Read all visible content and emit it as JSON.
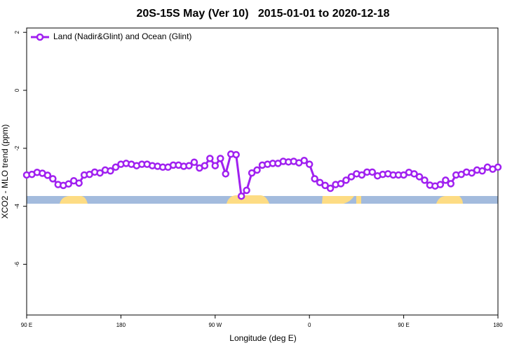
{
  "chart_data": {
    "type": "line",
    "title": "20S-15S May (Ver 10)   2015-01-01 to 2020-12-18",
    "xlabel": "Longitude (deg E)",
    "ylabel": "XCO2 - MLO trend (ppm)",
    "xlim": [
      90,
      540
    ],
    "xticks": [
      {
        "value": 90,
        "label": "90 E"
      },
      180,
      {
        "value": 270,
        "label": "90 W"
      },
      {
        "value": 360,
        "label": "0"
      },
      {
        "value": 450,
        "label": "90 E"
      },
      {
        "value": 540,
        "label": "180"
      }
    ],
    "ylim": [
      -7.75,
      2.15
    ],
    "yticks": [
      -6,
      -4,
      -2,
      0,
      2
    ],
    "legend": "top-left",
    "series": [
      {
        "name": "Land (Nadir&Glint) and Ocean (Glint)",
        "color": "#a020f0",
        "x": [
          90,
          95,
          100,
          105,
          110,
          115,
          120,
          125,
          130,
          135,
          140,
          145,
          150,
          155,
          160,
          165,
          170,
          175,
          180,
          185,
          190,
          195,
          200,
          205,
          210,
          215,
          220,
          225,
          230,
          235,
          240,
          245,
          250,
          255,
          260,
          265,
          270,
          275,
          280,
          285,
          290,
          295,
          300,
          305,
          310,
          315,
          320,
          325,
          330,
          335,
          340,
          345,
          350,
          355,
          360,
          365,
          370,
          375,
          380,
          385,
          390,
          395,
          400,
          405,
          410,
          415,
          420,
          425,
          430,
          435,
          440,
          445,
          450,
          455,
          460,
          465,
          470,
          475,
          480,
          485,
          490,
          495,
          500,
          505,
          510,
          515,
          520,
          525,
          530,
          535,
          540
        ],
        "values": [
          -2.92,
          -2.9,
          -2.83,
          -2.86,
          -2.93,
          -3.05,
          -3.25,
          -3.28,
          -3.23,
          -3.12,
          -3.2,
          -2.92,
          -2.9,
          -2.82,
          -2.85,
          -2.75,
          -2.78,
          -2.65,
          -2.55,
          -2.52,
          -2.55,
          -2.6,
          -2.55,
          -2.55,
          -2.6,
          -2.62,
          -2.65,
          -2.65,
          -2.58,
          -2.58,
          -2.62,
          -2.6,
          -2.48,
          -2.68,
          -2.6,
          -2.35,
          -2.6,
          -2.35,
          -2.88,
          -2.2,
          -2.22,
          -3.65,
          -3.45,
          -2.85,
          -2.75,
          -2.58,
          -2.55,
          -2.52,
          -2.52,
          -2.45,
          -2.47,
          -2.45,
          -2.5,
          -2.42,
          -2.55,
          -3.05,
          -3.18,
          -3.28,
          -3.38,
          -3.25,
          -3.22,
          -3.1,
          -2.98,
          -2.88,
          -2.92,
          -2.82,
          -2.82,
          -2.95,
          -2.9,
          -2.88,
          -2.92,
          -2.92,
          -2.92,
          -2.83,
          -2.88,
          -2.98,
          -3.1,
          -3.27,
          -3.3,
          -3.25,
          -3.1,
          -3.22,
          -2.92,
          -2.9,
          -2.82,
          -2.85,
          -2.75,
          -2.78,
          -2.65,
          -2.72,
          -2.65
        ]
      }
    ]
  }
}
